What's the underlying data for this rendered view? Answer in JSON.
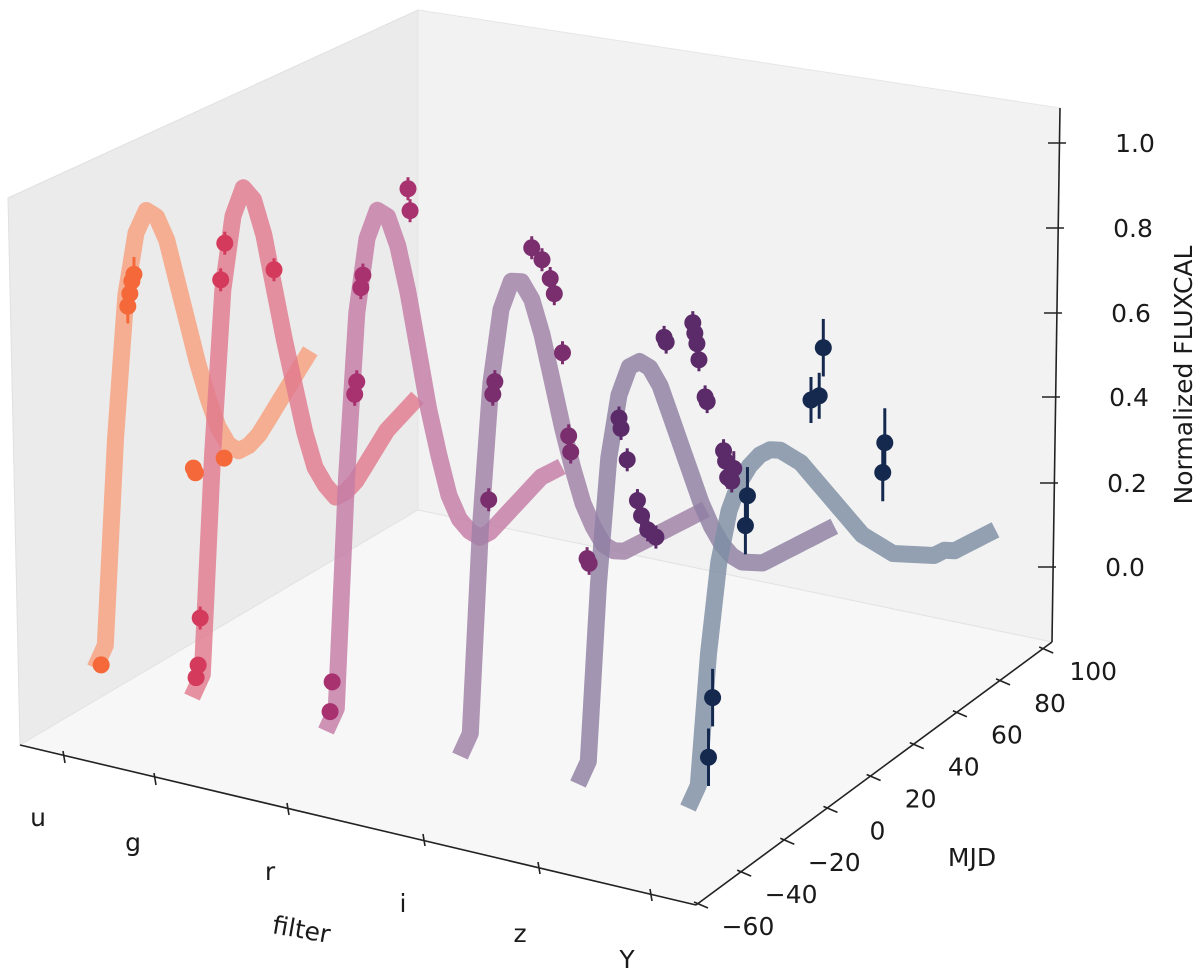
{
  "chart_data": {
    "type": "line",
    "title": "",
    "xlabel": "filter",
    "ylabel": "MJD",
    "zlabel": "Normalized FLUXCAL",
    "categories": [
      "u",
      "g",
      "r",
      "i",
      "z",
      "Y"
    ],
    "y_ticks": [
      -60,
      -40,
      -20,
      0,
      20,
      40,
      60,
      80,
      100
    ],
    "z_ticks": [
      "0.0",
      "0.2",
      "0.4",
      "0.6",
      "0.8",
      "1.0"
    ],
    "ylim": [
      -60,
      105
    ],
    "zlim": [
      -0.15,
      1.05
    ],
    "grid": false,
    "legend": "none",
    "model_curves": [
      {
        "filter": "u",
        "color": "#f7a07e",
        "mjd": [
          -50,
          -45,
          -40,
          -35,
          -30,
          -25,
          -20,
          -15,
          -10,
          -5,
          0,
          5,
          10,
          15,
          20,
          25,
          30,
          35,
          40,
          45,
          50,
          55
        ],
        "flux": [
          0.0,
          0.03,
          0.38,
          0.62,
          0.72,
          0.75,
          0.73,
          0.68,
          0.6,
          0.52,
          0.44,
          0.37,
          0.31,
          0.27,
          0.25,
          0.25,
          0.26,
          0.28,
          0.3,
          0.32,
          0.34,
          0.36
        ]
      },
      {
        "filter": "g",
        "color": "#e07a8e",
        "mjd": [
          -50,
          -45,
          -40,
          -35,
          -30,
          -25,
          -20,
          -15,
          -10,
          -5,
          0,
          5,
          10,
          15,
          20,
          25,
          30,
          35,
          40,
          45,
          50,
          55,
          60
        ],
        "flux": [
          0.0,
          0.03,
          0.4,
          0.68,
          0.8,
          0.84,
          0.81,
          0.74,
          0.64,
          0.54,
          0.45,
          0.36,
          0.29,
          0.25,
          0.22,
          0.22,
          0.23,
          0.25,
          0.27,
          0.29,
          0.3,
          0.31,
          0.32
        ]
      },
      {
        "filter": "r",
        "color": "#c47ba6",
        "mjd": [
          -50,
          -45,
          -40,
          -35,
          -30,
          -25,
          -20,
          -15,
          -10,
          -5,
          0,
          5,
          10,
          15,
          20,
          25,
          30,
          35,
          40,
          45,
          50,
          55,
          60,
          65
        ],
        "flux": [
          0.0,
          0.03,
          0.42,
          0.7,
          0.82,
          0.86,
          0.84,
          0.78,
          0.69,
          0.58,
          0.47,
          0.38,
          0.3,
          0.25,
          0.22,
          0.2,
          0.2,
          0.21,
          0.22,
          0.23,
          0.24,
          0.25,
          0.25,
          0.25
        ]
      },
      {
        "filter": "i",
        "color": "#9f80a6",
        "mjd": [
          -50,
          -45,
          -40,
          -35,
          -30,
          -25,
          -20,
          -15,
          -10,
          -5,
          0,
          5,
          10,
          15,
          20,
          25,
          30,
          35,
          40,
          45,
          50,
          55,
          60,
          65,
          70
        ],
        "flux": [
          0.0,
          0.03,
          0.38,
          0.62,
          0.74,
          0.78,
          0.77,
          0.73,
          0.66,
          0.57,
          0.48,
          0.4,
          0.33,
          0.28,
          0.24,
          0.22,
          0.21,
          0.21,
          0.21,
          0.21,
          0.21,
          0.21,
          0.21,
          0.21,
          0.21
        ]
      },
      {
        "filter": "z",
        "color": "#8f7fa2",
        "mjd": [
          -50,
          -45,
          -40,
          -35,
          -30,
          -25,
          -20,
          -15,
          -10,
          -5,
          0,
          5,
          10,
          15,
          20,
          25,
          30,
          35,
          40,
          45,
          50,
          55,
          60,
          65,
          70,
          75
        ],
        "flux": [
          0.0,
          0.03,
          0.33,
          0.54,
          0.64,
          0.68,
          0.68,
          0.66,
          0.62,
          0.56,
          0.5,
          0.44,
          0.38,
          0.33,
          0.29,
          0.26,
          0.24,
          0.23,
          0.22,
          0.22,
          0.22,
          0.22,
          0.22,
          0.22,
          0.22,
          0.22
        ]
      },
      {
        "filter": "Y",
        "color": "#7d8ea3",
        "mjd": [
          -50,
          -45,
          -40,
          -35,
          -30,
          -25,
          -20,
          -15,
          -10,
          -5,
          0,
          5,
          10,
          15,
          20,
          25,
          30,
          35,
          40,
          45,
          50,
          55,
          60,
          65,
          70,
          75,
          80,
          85,
          90,
          95,
          100
        ],
        "flux": [
          0.0,
          0.03,
          0.25,
          0.4,
          0.48,
          0.52,
          0.54,
          0.55,
          0.55,
          0.54,
          0.52,
          0.5,
          0.47,
          0.44,
          0.41,
          0.38,
          0.35,
          0.32,
          0.3,
          0.28,
          0.26,
          0.25,
          0.24,
          0.23,
          0.22,
          0.22,
          0.21,
          0.21,
          0.21,
          0.21,
          0.21
        ]
      }
    ],
    "observations": [
      {
        "filter": "u",
        "color": "#f4683a",
        "points": [
          [
            -47,
            0.0,
            0.0
          ],
          [
            -34,
            0.6,
            0.03
          ],
          [
            -33,
            0.62,
            0.02
          ],
          [
            -32,
            0.64,
            0.02
          ],
          [
            -31,
            0.65,
            0.03
          ],
          [
            -2,
            0.26,
            0.01
          ],
          [
            -1,
            0.25,
            0.01
          ],
          [
            13,
            0.25,
            0.01
          ]
        ]
      },
      {
        "filter": "g",
        "color": "#d43a5c",
        "points": [
          [
            -48,
            0.03,
            0.01
          ],
          [
            -47,
            0.05,
            0.01
          ],
          [
            -46,
            0.13,
            0.02
          ],
          [
            -36,
            0.7,
            0.02
          ],
          [
            -34,
            0.76,
            0.02
          ],
          [
            -10,
            0.67,
            0.02
          ]
        ]
      },
      {
        "filter": "r",
        "color": "#a8326f",
        "points": [
          [
            -48,
            0.03,
            0.01
          ],
          [
            -47,
            0.08,
            0.01
          ],
          [
            -36,
            0.56,
            0.02
          ],
          [
            -35,
            0.58,
            0.02
          ],
          [
            -33,
            0.74,
            0.02
          ],
          [
            -32,
            0.76,
            0.02
          ],
          [
            -10,
            0.87,
            0.02
          ],
          [
            -9,
            0.83,
            0.02
          ]
        ]
      },
      {
        "filter": "i",
        "color": "#7a2e6e",
        "points": [
          [
            -36,
            0.42,
            0.02
          ],
          [
            -34,
            0.6,
            0.02
          ],
          [
            -33,
            0.62,
            0.02
          ],
          [
            -15,
            0.82,
            0.02
          ],
          [
            -10,
            0.79,
            0.02
          ],
          [
            -6,
            0.75,
            0.02
          ],
          [
            -4,
            0.72,
            0.02
          ],
          [
            0,
            0.61,
            0.02
          ],
          [
            3,
            0.46,
            0.02
          ],
          [
            4,
            0.43,
            0.02
          ],
          [
            12,
            0.23,
            0.02
          ],
          [
            13,
            0.22,
            0.02
          ]
        ]
      },
      {
        "filter": "z",
        "color": "#5b2a69",
        "points": [
          [
            -30,
            0.6,
            0.02
          ],
          [
            -29,
            0.58,
            0.02
          ],
          [
            -26,
            0.52,
            0.02
          ],
          [
            -21,
            0.44,
            0.02
          ],
          [
            -19,
            0.41,
            0.02
          ],
          [
            -16,
            0.38,
            0.02
          ],
          [
            -12,
            0.36,
            0.02
          ],
          [
            -8,
            0.7,
            0.02
          ],
          [
            -7,
            0.69,
            0.02
          ],
          [
            6,
            0.7,
            0.02
          ],
          [
            7,
            0.68,
            0.02
          ],
          [
            8,
            0.66,
            0.02
          ],
          [
            9,
            0.63,
            0.02
          ],
          [
            12,
            0.56,
            0.02
          ],
          [
            13,
            0.55,
            0.02
          ],
          [
            21,
            0.45,
            0.02
          ],
          [
            22,
            0.43,
            0.02
          ],
          [
            23,
            0.4,
            0.02
          ],
          [
            25,
            0.39,
            0.02
          ],
          [
            26,
            0.41,
            0.03
          ]
        ]
      },
      {
        "filter": "Y",
        "color": "#15294f",
        "points": [
          [
            -40,
            0.07,
            0.05
          ],
          [
            -38,
            0.17,
            0.05
          ],
          [
            -22,
            0.44,
            0.05
          ],
          [
            -21,
            0.49,
            0.05
          ],
          [
            10,
            0.6,
            0.04
          ],
          [
            14,
            0.6,
            0.04
          ],
          [
            16,
            0.68,
            0.05
          ],
          [
            45,
            0.41,
            0.05
          ],
          [
            46,
            0.46,
            0.06
          ]
        ]
      }
    ]
  }
}
